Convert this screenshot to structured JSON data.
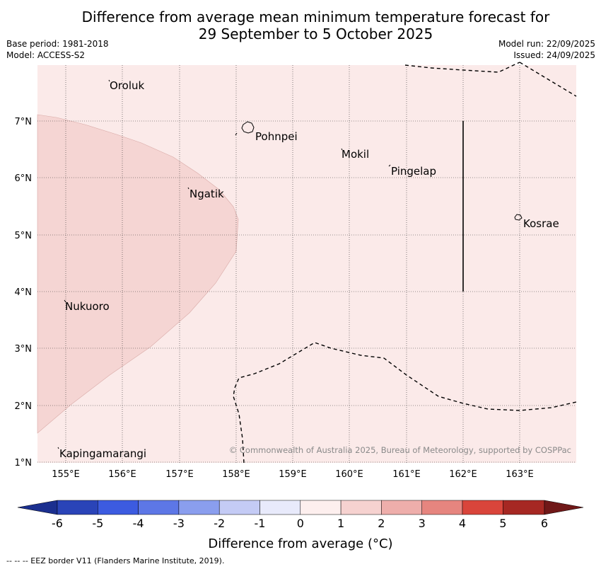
{
  "header": {
    "title_line1": "Difference from average mean minimum temperature forecast for",
    "title_line2": "29 September to 5 October 2025",
    "base_period": "Base period: 1981-2018",
    "model": "Model: ACCESS-S2",
    "model_run": "Model run: 22/09/2025",
    "issued": "Issued: 24/09/2025"
  },
  "map": {
    "lon_labels": [
      "155°E",
      "156°E",
      "157°E",
      "158°E",
      "159°E",
      "160°E",
      "161°E",
      "162°E",
      "163°E"
    ],
    "lat_labels": [
      "7°N",
      "6°N",
      "5°N",
      "4°N",
      "3°N",
      "2°N",
      "1°N"
    ],
    "places": [
      {
        "name": "Oroluk"
      },
      {
        "name": "Pohnpei"
      },
      {
        "name": "Mokil"
      },
      {
        "name": "Pingelap"
      },
      {
        "name": "Ngatik"
      },
      {
        "name": "Kosrae"
      },
      {
        "name": "Nukuoro"
      },
      {
        "name": "Kapingamarangi"
      }
    ],
    "copyright": "© Commonwealth of Australia 2025, Bureau of Meteorology, supported by COSPPac",
    "colors": {
      "background_band": "#fbeae9",
      "warm_band": "#f5d5d3"
    }
  },
  "colorbar": {
    "ticks": [
      "-6",
      "-5",
      "-4",
      "-3",
      "-2",
      "-1",
      "0",
      "1",
      "2",
      "3",
      "4",
      "5",
      "6"
    ],
    "colors": [
      "#1b2f8f",
      "#2a44b8",
      "#3c5be0",
      "#5d77e6",
      "#8a9eee",
      "#c4cbf5",
      "#e8eafb",
      "#fdefee",
      "#f6d2d0",
      "#eeaeab",
      "#e6857f",
      "#d9453b",
      "#a62823",
      "#701818"
    ],
    "label": "Difference from average (°C)"
  },
  "footer": {
    "note": "--  --  -- EEZ border V11 (Flanders Marine Institute, 2019)."
  }
}
